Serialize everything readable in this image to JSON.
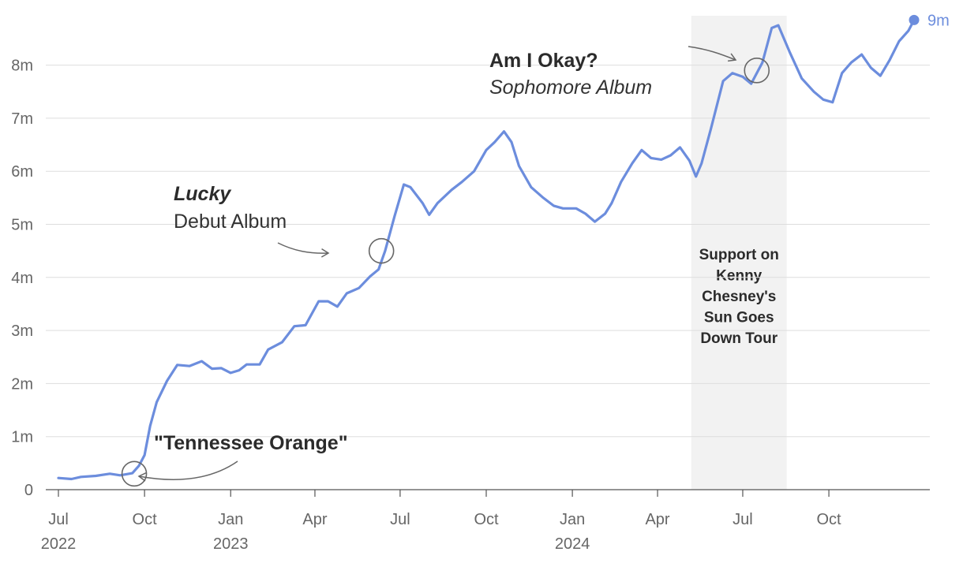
{
  "chart_data": {
    "type": "line",
    "title": "",
    "xlabel": "",
    "ylabel": "",
    "x_range": [
      "2022-07-01",
      "2024-12-31"
    ],
    "ylim": [
      0,
      9000000
    ],
    "grid": true,
    "x_ticks": [
      {
        "date": "2022-07-01",
        "label": "Jul",
        "year": "2022"
      },
      {
        "date": "2022-10-01",
        "label": "Oct",
        "year": ""
      },
      {
        "date": "2023-01-01",
        "label": "Jan",
        "year": "2023"
      },
      {
        "date": "2023-04-01",
        "label": "Apr",
        "year": ""
      },
      {
        "date": "2023-07-01",
        "label": "Jul",
        "year": ""
      },
      {
        "date": "2023-10-01",
        "label": "Oct",
        "year": ""
      },
      {
        "date": "2024-01-01",
        "label": "Jan",
        "year": "2024"
      },
      {
        "date": "2024-04-01",
        "label": "Apr",
        "year": ""
      },
      {
        "date": "2024-07-01",
        "label": "Jul",
        "year": ""
      },
      {
        "date": "2024-10-01",
        "label": "Oct",
        "year": ""
      }
    ],
    "y_ticks": [
      {
        "value": 0,
        "label": "0"
      },
      {
        "value": 1000000,
        "label": "1m"
      },
      {
        "value": 2000000,
        "label": "2m"
      },
      {
        "value": 3000000,
        "label": "3m"
      },
      {
        "value": 4000000,
        "label": "4m"
      },
      {
        "value": 5000000,
        "label": "5m"
      },
      {
        "value": 6000000,
        "label": "6m"
      },
      {
        "value": 7000000,
        "label": "7m"
      },
      {
        "value": 8000000,
        "label": "8m"
      }
    ],
    "series": [
      {
        "color": "#6c8ddd",
        "end_label": "9m",
        "points": [
          [
            "2022-07-01",
            220000
          ],
          [
            "2022-07-15",
            200000
          ],
          [
            "2022-07-25",
            240000
          ],
          [
            "2022-08-10",
            260000
          ],
          [
            "2022-08-25",
            300000
          ],
          [
            "2022-09-05",
            270000
          ],
          [
            "2022-09-18",
            310000
          ],
          [
            "2022-09-25",
            450000
          ],
          [
            "2022-10-01",
            650000
          ],
          [
            "2022-10-07",
            1200000
          ],
          [
            "2022-10-14",
            1650000
          ],
          [
            "2022-10-25",
            2050000
          ],
          [
            "2022-11-05",
            2350000
          ],
          [
            "2022-11-18",
            2330000
          ],
          [
            "2022-12-01",
            2420000
          ],
          [
            "2022-12-12",
            2280000
          ],
          [
            "2022-12-22",
            2290000
          ],
          [
            "2023-01-01",
            2200000
          ],
          [
            "2023-01-10",
            2250000
          ],
          [
            "2023-01-18",
            2360000
          ],
          [
            "2023-02-01",
            2360000
          ],
          [
            "2023-02-10",
            2640000
          ],
          [
            "2023-02-25",
            2780000
          ],
          [
            "2023-03-10",
            3080000
          ],
          [
            "2023-03-22",
            3100000
          ],
          [
            "2023-04-05",
            3550000
          ],
          [
            "2023-04-15",
            3550000
          ],
          [
            "2023-04-25",
            3450000
          ],
          [
            "2023-05-05",
            3700000
          ],
          [
            "2023-05-18",
            3800000
          ],
          [
            "2023-05-30",
            4020000
          ],
          [
            "2023-06-08",
            4150000
          ],
          [
            "2023-06-15",
            4500000
          ],
          [
            "2023-06-25",
            5150000
          ],
          [
            "2023-07-05",
            5750000
          ],
          [
            "2023-07-12",
            5700000
          ],
          [
            "2023-07-25",
            5400000
          ],
          [
            "2023-08-01",
            5180000
          ],
          [
            "2023-08-10",
            5400000
          ],
          [
            "2023-08-25",
            5650000
          ],
          [
            "2023-09-05",
            5800000
          ],
          [
            "2023-09-18",
            6000000
          ],
          [
            "2023-10-01",
            6400000
          ],
          [
            "2023-10-10",
            6550000
          ],
          [
            "2023-10-20",
            6750000
          ],
          [
            "2023-10-28",
            6550000
          ],
          [
            "2023-11-05",
            6100000
          ],
          [
            "2023-11-18",
            5700000
          ],
          [
            "2023-12-01",
            5500000
          ],
          [
            "2023-12-12",
            5350000
          ],
          [
            "2023-12-22",
            5300000
          ],
          [
            "2024-01-05",
            5300000
          ],
          [
            "2024-01-15",
            5200000
          ],
          [
            "2024-01-25",
            5050000
          ],
          [
            "2024-02-05",
            5200000
          ],
          [
            "2024-02-12",
            5400000
          ],
          [
            "2024-02-22",
            5800000
          ],
          [
            "2024-03-05",
            6150000
          ],
          [
            "2024-03-15",
            6400000
          ],
          [
            "2024-03-25",
            6250000
          ],
          [
            "2024-04-05",
            6220000
          ],
          [
            "2024-04-15",
            6300000
          ],
          [
            "2024-04-25",
            6450000
          ],
          [
            "2024-05-05",
            6200000
          ],
          [
            "2024-05-12",
            5900000
          ],
          [
            "2024-05-18",
            6150000
          ],
          [
            "2024-05-28",
            6800000
          ],
          [
            "2024-06-10",
            7700000
          ],
          [
            "2024-06-20",
            7850000
          ],
          [
            "2024-07-01",
            7780000
          ],
          [
            "2024-07-10",
            7650000
          ],
          [
            "2024-07-22",
            8050000
          ],
          [
            "2024-08-01",
            8700000
          ],
          [
            "2024-08-08",
            8750000
          ],
          [
            "2024-08-20",
            8250000
          ],
          [
            "2024-09-02",
            7750000
          ],
          [
            "2024-09-15",
            7500000
          ],
          [
            "2024-09-25",
            7350000
          ],
          [
            "2024-10-05",
            7300000
          ],
          [
            "2024-10-15",
            7850000
          ],
          [
            "2024-10-25",
            8050000
          ],
          [
            "2024-11-05",
            8200000
          ],
          [
            "2024-11-15",
            7950000
          ],
          [
            "2024-11-25",
            7800000
          ],
          [
            "2024-12-05",
            8100000
          ],
          [
            "2024-12-15",
            8450000
          ],
          [
            "2024-12-25",
            8650000
          ],
          [
            "2024-12-31",
            8850000
          ]
        ]
      }
    ],
    "shaded_band": {
      "start": "2024-05-07",
      "end": "2024-08-17",
      "color": "#f2f2f2",
      "label_lines": [
        "Support on",
        "Kenny",
        "Chesney's",
        "Sun Goes",
        "Down Tour"
      ]
    },
    "annotations": [
      {
        "id": "tennessee-orange",
        "date": "2022-09-20",
        "value": 300000,
        "title": "\"Tennessee Orange\"",
        "subtitle": "",
        "subtitle_italic": false
      },
      {
        "id": "lucky",
        "date": "2023-06-11",
        "value": 4500000,
        "title": "Lucky",
        "title_italic": true,
        "subtitle": "Debut Album",
        "subtitle_italic": false
      },
      {
        "id": "am-i-okay",
        "date": "2024-07-16",
        "value": 7900000,
        "title": "Am I Okay?",
        "subtitle": "Sophomore Album",
        "subtitle_italic": true
      }
    ],
    "annotation_color": "#666666"
  }
}
